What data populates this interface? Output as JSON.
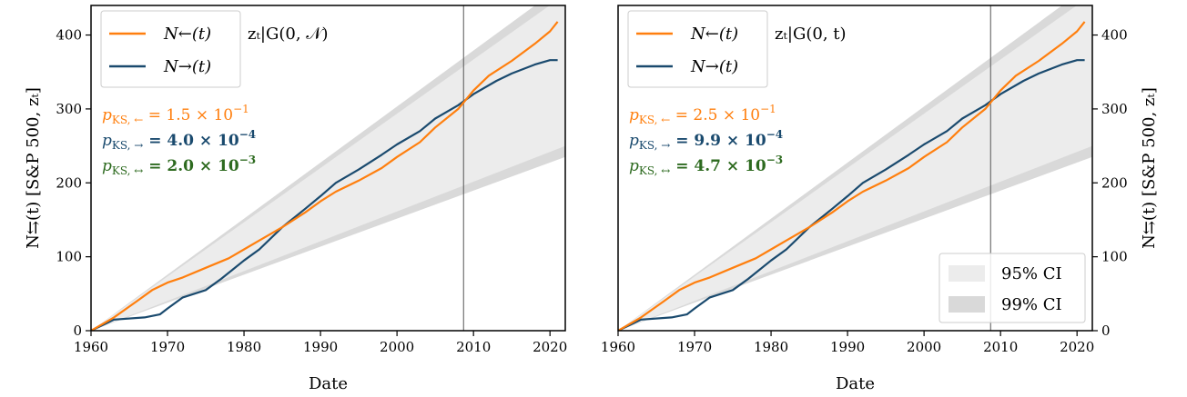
{
  "chart_data": [
    {
      "type": "line",
      "panel": "left",
      "xlabel": "Date",
      "ylabel": "N⇆(t) [S&P 500, zₜ]",
      "xlim": [
        1960,
        2022
      ],
      "ylim": [
        0,
        440
      ],
      "xticks": [
        "1960",
        "1970",
        "1980",
        "1990",
        "2000",
        "2010",
        "2020"
      ],
      "yticks": [
        "0",
        "100",
        "200",
        "300",
        "400"
      ],
      "vline_x": 2008.7,
      "annotation": "zₜ|G(0, 𝒩)",
      "series": [
        {
          "name": "N←(t)",
          "color": "#ff7f0e",
          "x": [
            1960,
            1963,
            1966,
            1968,
            1970,
            1972,
            1975,
            1978,
            1980,
            1982,
            1985,
            1988,
            1990,
            1992,
            1995,
            1998,
            2000,
            2003,
            2005,
            2008,
            2010,
            2012,
            2015,
            2018,
            2020,
            2021
          ],
          "y": [
            0,
            18,
            40,
            55,
            65,
            72,
            85,
            98,
            110,
            122,
            140,
            160,
            175,
            188,
            203,
            220,
            235,
            255,
            275,
            300,
            325,
            345,
            365,
            388,
            405,
            418
          ]
        },
        {
          "name": "N→(t)",
          "color": "#1a4a6e",
          "x": [
            1960,
            1962,
            1963,
            1967,
            1969,
            1970,
            1972,
            1975,
            1977,
            1980,
            1982,
            1985,
            1988,
            1990,
            1992,
            1995,
            1998,
            2000,
            2003,
            2005,
            2008,
            2010,
            2013,
            2015,
            2018,
            2020,
            2021
          ],
          "y": [
            0,
            10,
            15,
            18,
            22,
            30,
            45,
            55,
            70,
            95,
            110,
            140,
            165,
            182,
            200,
            218,
            238,
            252,
            270,
            287,
            305,
            320,
            338,
            348,
            360,
            366,
            366
          ]
        }
      ],
      "ci_95": {
        "x": [
          1960,
          2022
        ],
        "lower": [
          0,
          250
        ],
        "upper": [
          0,
          455
        ]
      },
      "ci_99": {
        "x": [
          1960,
          2022
        ],
        "lower": [
          0,
          235
        ],
        "upper": [
          0,
          470
        ]
      },
      "stats": [
        {
          "label": "p",
          "sub": "KS, ←",
          "value": " = 1.5 × 10",
          "exp": "−1",
          "color": "#ff7f0e",
          "bold": false
        },
        {
          "label": "p",
          "sub": "KS, →",
          "value": " = 4.0 × 10",
          "exp": "−4",
          "color": "#1a4a6e",
          "bold": true
        },
        {
          "label": "p",
          "sub": "KS, ↔",
          "value": " = 2.0 × 10",
          "exp": "−3",
          "color": "#2d6a1f",
          "bold": true
        }
      ]
    },
    {
      "type": "line",
      "panel": "right",
      "xlabel": "Date",
      "ylabel": "N⇆(t) [S&P 500, zₜ]",
      "xlim": [
        1960,
        2022
      ],
      "ylim": [
        0,
        440
      ],
      "xticks": [
        "1960",
        "1970",
        "1980",
        "1990",
        "2000",
        "2010",
        "2020"
      ],
      "yticks": [
        "0",
        "100",
        "200",
        "300",
        "400"
      ],
      "vline_x": 2008.7,
      "annotation": "zₜ|G(0, t)",
      "series": [
        {
          "name": "N←(t)",
          "color": "#ff7f0e",
          "x": [
            1960,
            1963,
            1966,
            1968,
            1970,
            1972,
            1975,
            1978,
            1980,
            1982,
            1985,
            1988,
            1990,
            1992,
            1995,
            1998,
            2000,
            2003,
            2005,
            2008,
            2010,
            2012,
            2015,
            2018,
            2020,
            2021
          ],
          "y": [
            0,
            18,
            40,
            55,
            65,
            72,
            85,
            98,
            110,
            122,
            140,
            160,
            175,
            188,
            203,
            220,
            235,
            255,
            275,
            300,
            325,
            345,
            365,
            388,
            405,
            418
          ]
        },
        {
          "name": "N→(t)",
          "color": "#1a4a6e",
          "x": [
            1960,
            1962,
            1963,
            1967,
            1969,
            1970,
            1972,
            1975,
            1977,
            1980,
            1982,
            1985,
            1988,
            1990,
            1992,
            1995,
            1998,
            2000,
            2003,
            2005,
            2008,
            2010,
            2013,
            2015,
            2018,
            2020,
            2021
          ],
          "y": [
            0,
            10,
            15,
            18,
            22,
            30,
            45,
            55,
            70,
            95,
            110,
            140,
            165,
            182,
            200,
            218,
            238,
            252,
            270,
            287,
            305,
            320,
            338,
            348,
            360,
            366,
            366
          ]
        }
      ],
      "ci_95": {
        "x": [
          1960,
          2022
        ],
        "lower": [
          0,
          250
        ],
        "upper": [
          0,
          455
        ]
      },
      "ci_99": {
        "x": [
          1960,
          2022
        ],
        "lower": [
          0,
          235
        ],
        "upper": [
          0,
          470
        ]
      },
      "ci_legend": [
        "95% CI",
        "99% CI"
      ],
      "stats": [
        {
          "label": "p",
          "sub": "KS, ←",
          "value": " = 2.5 × 10",
          "exp": "−1",
          "color": "#ff7f0e",
          "bold": false
        },
        {
          "label": "p",
          "sub": "KS, →",
          "value": " = 9.9 × 10",
          "exp": "−4",
          "color": "#1a4a6e",
          "bold": true
        },
        {
          "label": "p",
          "sub": "KS, ↔",
          "value": " = 4.7 × 10",
          "exp": "−3",
          "color": "#2d6a1f",
          "bold": true
        }
      ]
    }
  ],
  "colors": {
    "ci95": "#ececec",
    "ci99": "#d9d9d9",
    "vline": "#555555"
  }
}
